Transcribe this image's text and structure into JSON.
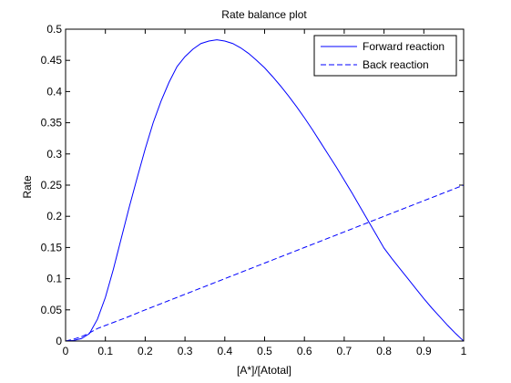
{
  "chart_data": {
    "type": "line",
    "title": "Rate balance plot",
    "xlabel": "[A*]/[Atotal]",
    "ylabel": "Rate",
    "xlim": [
      0,
      1
    ],
    "ylim": [
      0,
      0.5
    ],
    "x_ticks": [
      0,
      0.1,
      0.2,
      0.3,
      0.4,
      0.5,
      0.6,
      0.7,
      0.8,
      0.9,
      1
    ],
    "x_tick_labels": [
      "0",
      "0.1",
      "0.2",
      "0.3",
      "0.4",
      "0.5",
      "0.6",
      "0.7",
      "0.8",
      "0.9",
      "1"
    ],
    "y_ticks": [
      0,
      0.05,
      0.1,
      0.15,
      0.2,
      0.25,
      0.3,
      0.35,
      0.4,
      0.45,
      0.5
    ],
    "y_tick_labels": [
      "0",
      "0.05",
      "0.1",
      "0.15",
      "0.2",
      "0.25",
      "0.3",
      "0.35",
      "0.4",
      "0.45",
      "0.5"
    ],
    "grid": false,
    "legend_position": "top-right",
    "series": [
      {
        "name": "Forward reaction",
        "style": "solid",
        "color": "#0000ff",
        "x": [
          0,
          0.02,
          0.04,
          0.06,
          0.08,
          0.1,
          0.12,
          0.14,
          0.16,
          0.18,
          0.2,
          0.22,
          0.24,
          0.26,
          0.28,
          0.3,
          0.32,
          0.34,
          0.36,
          0.38,
          0.4,
          0.42,
          0.44,
          0.46,
          0.48,
          0.5,
          0.52,
          0.54,
          0.56,
          0.58,
          0.6,
          0.62,
          0.64,
          0.66,
          0.68,
          0.7,
          0.72,
          0.74,
          0.76,
          0.78,
          0.8,
          0.82,
          0.84,
          0.86,
          0.88,
          0.9,
          0.92,
          0.94,
          0.96,
          0.98,
          1
        ],
        "y": [
          0,
          0.001,
          0.004,
          0.012,
          0.035,
          0.07,
          0.115,
          0.165,
          0.215,
          0.262,
          0.308,
          0.35,
          0.385,
          0.415,
          0.44,
          0.456,
          0.468,
          0.477,
          0.481,
          0.483,
          0.481,
          0.477,
          0.47,
          0.461,
          0.45,
          0.438,
          0.424,
          0.409,
          0.393,
          0.376,
          0.358,
          0.339,
          0.319,
          0.299,
          0.279,
          0.258,
          0.237,
          0.215,
          0.193,
          0.171,
          0.149,
          0.132,
          0.116,
          0.1,
          0.084,
          0.068,
          0.053,
          0.039,
          0.025,
          0.012,
          0
        ]
      },
      {
        "name": "Back reaction",
        "style": "dashed",
        "color": "#0000ff",
        "x": [
          0,
          0.02,
          0.04,
          0.06,
          0.08,
          0.1,
          0.15,
          0.2,
          0.3,
          0.4,
          0.5,
          0.6,
          0.7,
          0.8,
          0.9,
          1
        ],
        "y": [
          0,
          0.003,
          0.007,
          0.013,
          0.02,
          0.025,
          0.037,
          0.05,
          0.075,
          0.1,
          0.125,
          0.15,
          0.175,
          0.2,
          0.225,
          0.25
        ]
      }
    ]
  }
}
